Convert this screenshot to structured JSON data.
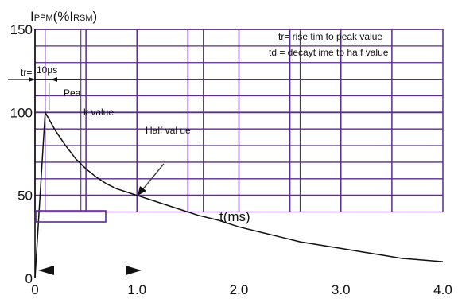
{
  "chart_data": {
    "type": "line",
    "ylabel_main": "I",
    "ylabel_sub": "PPM",
    "ylabel_rest": "(%I",
    "ylabel_sub2": "RSM",
    "ylabel_close": ")",
    "xlabel": "t(ms)",
    "x_ticks": [
      "0",
      "1.0",
      "2.0",
      "3.0",
      "4.0"
    ],
    "y_ticks": [
      "0",
      "50",
      "100",
      "150"
    ],
    "xlim": [
      0,
      4.0
    ],
    "ylim": [
      0,
      150
    ],
    "grid": true,
    "series": [
      {
        "x": [
          0,
          0.1,
          0.2,
          0.3,
          0.4,
          0.5,
          0.6,
          0.7,
          0.8,
          0.9,
          1.0,
          1.2,
          1.4,
          1.6,
          1.8,
          2.0,
          2.2,
          2.4,
          2.6,
          2.8,
          3.0,
          3.2,
          3.4,
          3.6,
          3.8,
          4.0
        ],
        "y": [
          0,
          100,
          89,
          80,
          72,
          66,
          61,
          57,
          54,
          52,
          50,
          46,
          42,
          38,
          35,
          31,
          28,
          25,
          22,
          20,
          18,
          16,
          14,
          12,
          11,
          10
        ]
      }
    ],
    "annotations": {
      "tr_label": "tr=",
      "tr_value": "10µs",
      "peak_part1": "Pea",
      "peak_part2": "k value",
      "half_value": "Half val ue",
      "legend_line1": "tr= rise tim    to peak  value",
      "legend_line2": "td = decayt  ime to ha f value"
    }
  }
}
